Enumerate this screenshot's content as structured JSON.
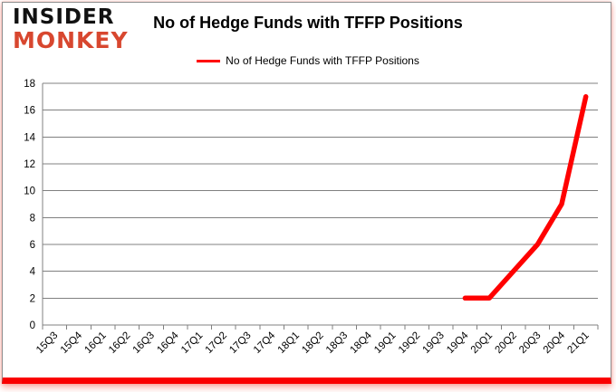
{
  "logo": {
    "line1": "INSIDER",
    "line2": "MONKEY"
  },
  "header": {
    "title": "No of Hedge Funds with TFFP Positions"
  },
  "legend": {
    "label": "No of Hedge Funds with TFFP Positions",
    "line_color": "#ff0000"
  },
  "colors": {
    "logo_red": "#d8472f",
    "line_red": "#ff0000",
    "grid_gray": "#808080",
    "border_gray": "#8e8e8e",
    "accent_bottom_bar": "#fa0000"
  },
  "chart_data": {
    "type": "line",
    "title": "No of Hedge Funds with TFFP Positions",
    "categories": [
      "15Q3",
      "15Q4",
      "16Q1",
      "16Q2",
      "16Q3",
      "16Q4",
      "17Q1",
      "17Q2",
      "17Q3",
      "17Q4",
      "18Q1",
      "18Q2",
      "18Q3",
      "18Q4",
      "19Q1",
      "19Q2",
      "19Q3",
      "19Q4",
      "20Q1",
      "20Q2",
      "20Q3",
      "20Q4",
      "21Q1"
    ],
    "series": [
      {
        "name": "No of Hedge Funds with TFFP Positions",
        "color": "#ff0000",
        "values": [
          null,
          null,
          null,
          null,
          null,
          null,
          null,
          null,
          null,
          null,
          null,
          null,
          null,
          null,
          null,
          null,
          null,
          2,
          2,
          4,
          6,
          9,
          17
        ]
      }
    ],
    "xlabel": "",
    "ylabel": "",
    "ylim": [
      0,
      18
    ],
    "ytick_step": 2,
    "grid": true,
    "grid_color": "#808080",
    "legend_position": "top-center",
    "x_tick_rotation": -45,
    "y_tick_labels": [
      "0",
      "2",
      "4",
      "6",
      "8",
      "10",
      "12",
      "14",
      "16",
      "18"
    ]
  }
}
